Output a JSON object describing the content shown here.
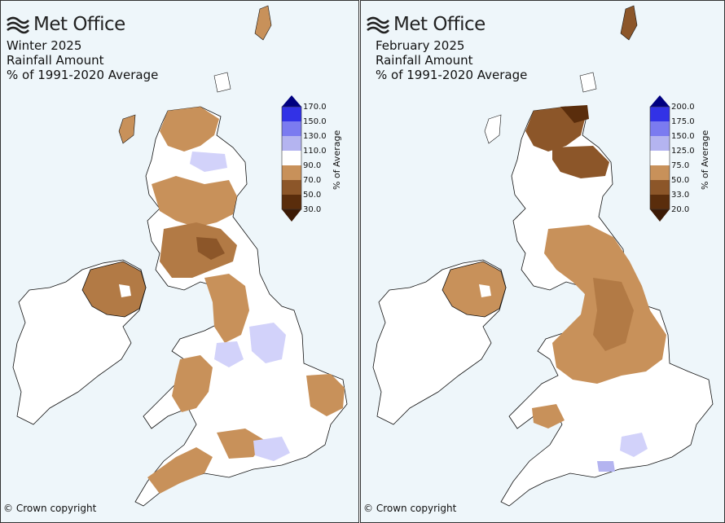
{
  "brand": {
    "name": "Met Office"
  },
  "copyright": "© Crown copyright",
  "colors": {
    "sea": "#eef6fa",
    "land": "#ffffff",
    "coast": "#111111",
    "brown_light": "#c8915a",
    "brown_mid": "#b27a45",
    "brown_dark": "#8c5629",
    "brown_darkest": "#5a2d0c",
    "blue_pale": "#d2d2fa",
    "blue_light": "#b4b4f0",
    "blue_mid": "#7b7bf0",
    "blue_strong": "#3232e6",
    "navy": "#000080",
    "tan": "#e8c89c"
  },
  "maps": [
    {
      "title": [
        "Winter 2025",
        "Rainfall Amount",
        "% of 1991-2020 Average"
      ],
      "legend": {
        "title": "% of Average",
        "ticks": [
          "170.0",
          "150.0",
          "130.0",
          "110.0",
          "90.0",
          "70.0",
          "50.0",
          "30.0"
        ]
      }
    },
    {
      "title": [
        "February 2025",
        "Rainfall Amount",
        "% of 1991-2020 Average"
      ],
      "legend": {
        "title": "% of Average",
        "ticks": [
          "200.0",
          "175.0",
          "150.0",
          "125.0",
          "75.0",
          "50.0",
          "33.0",
          "20.0"
        ]
      }
    }
  ]
}
